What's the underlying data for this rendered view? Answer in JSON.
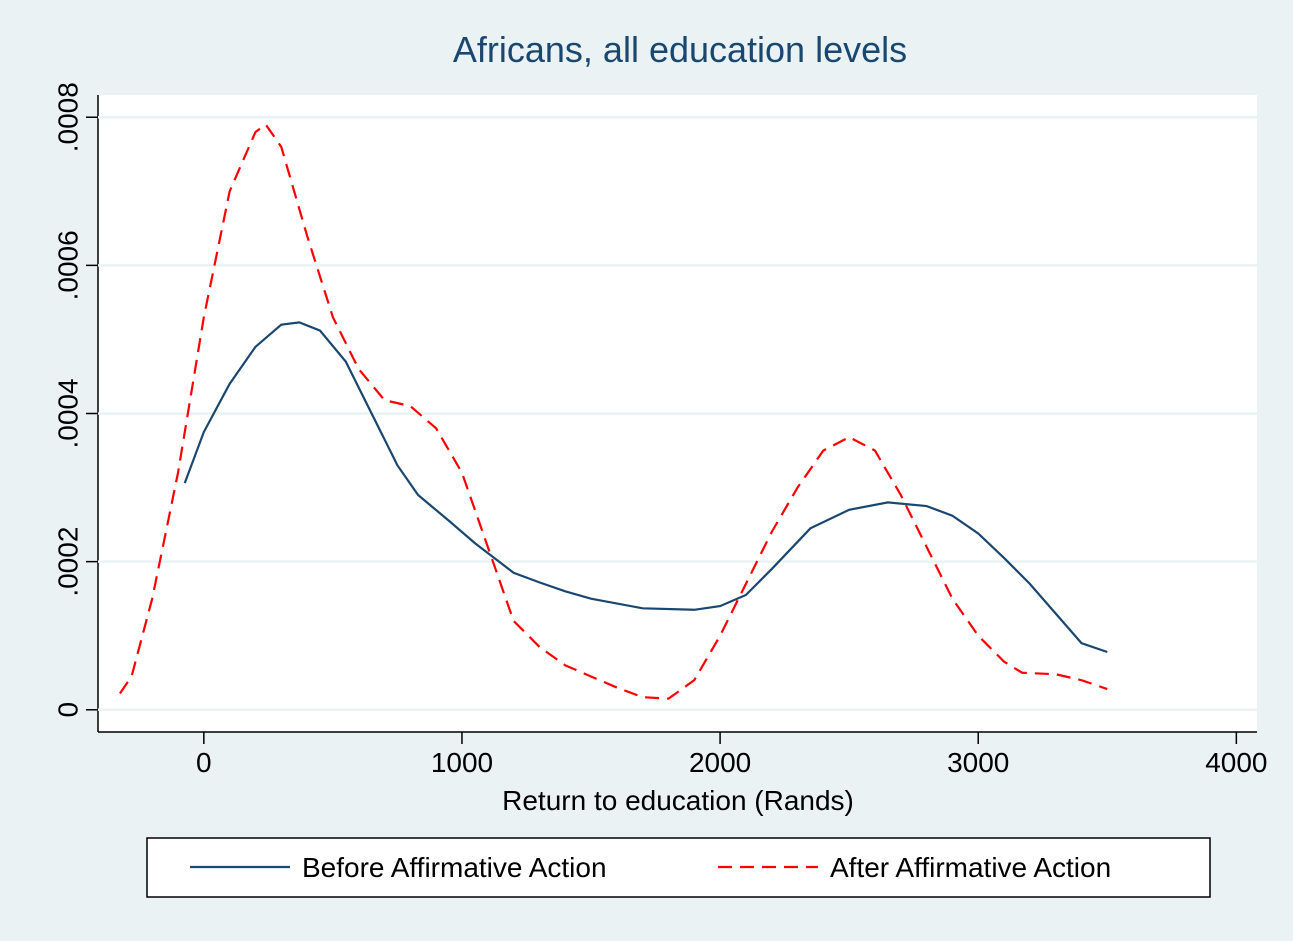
{
  "chart_data": {
    "type": "line",
    "title": "Africans, all education levels",
    "x_label": "Return to education (Rands)",
    "xlim": [
      -410,
      4080
    ],
    "ylim": [
      -3e-05,
      0.00083
    ],
    "xticks": [
      0,
      1000,
      2000,
      3000,
      4000
    ],
    "yticks": [
      0,
      {
        "value": 0.0002,
        "label": ".0002"
      },
      {
        "value": 0.0004,
        "label": ".0004"
      },
      {
        "value": 0.0006,
        "label": ".0006"
      },
      {
        "value": 0.0008,
        "label": ".0008"
      }
    ],
    "grid": true,
    "legend": "bottom",
    "series": [
      {
        "name": "Before Affirmative Action",
        "color": "#1a476f",
        "line_style": "solid",
        "x": [
          -74,
          0,
          100,
          200,
          300,
          370,
          450,
          550,
          650,
          750,
          830,
          950,
          1050,
          1200,
          1300,
          1400,
          1500,
          1700,
          1900,
          2000,
          2100,
          2200,
          2350,
          2500,
          2650,
          2800,
          2900,
          3000,
          3100,
          3200,
          3300,
          3400,
          3500
        ],
        "values": [
          0.000306,
          0.000375,
          0.00044,
          0.00049,
          0.00052,
          0.000523,
          0.000512,
          0.00047,
          0.0004,
          0.00033,
          0.00029,
          0.000255,
          0.000225,
          0.000185,
          0.000172,
          0.00016,
          0.00015,
          0.000137,
          0.000135,
          0.00014,
          0.000155,
          0.00019,
          0.000245,
          0.00027,
          0.00028,
          0.000275,
          0.000262,
          0.000238,
          0.000205,
          0.00017,
          0.00013,
          9e-05,
          7.8e-05
        ]
      },
      {
        "name": "After Affirmative Action",
        "color": "#ff0000",
        "line_style": "dashed",
        "x": [
          -325,
          -280,
          -200,
          -100,
          0,
          100,
          200,
          240,
          300,
          400,
          500,
          600,
          700,
          800,
          900,
          1000,
          1100,
          1200,
          1300,
          1400,
          1500,
          1600,
          1700,
          1800,
          1900,
          2000,
          2100,
          2200,
          2300,
          2400,
          2500,
          2600,
          2700,
          2800,
          2900,
          3000,
          3100,
          3170,
          3300,
          3400,
          3500
        ],
        "values": [
          2.2e-05,
          4.5e-05,
          0.00015,
          0.00032,
          0.00053,
          0.0007,
          0.00078,
          0.00079,
          0.00076,
          0.00064,
          0.00053,
          0.00046,
          0.000418,
          0.00041,
          0.00038,
          0.00032,
          0.00022,
          0.00012,
          8.5e-05,
          6e-05,
          4.5e-05,
          3e-05,
          1.7e-05,
          1.5e-05,
          4e-05,
          0.0001,
          0.00017,
          0.00024,
          0.0003,
          0.00035,
          0.000368,
          0.00035,
          0.00029,
          0.00022,
          0.00015,
          0.0001,
          6.5e-05,
          5e-05,
          4.8e-05,
          4e-05,
          2.8e-05
        ]
      }
    ]
  }
}
